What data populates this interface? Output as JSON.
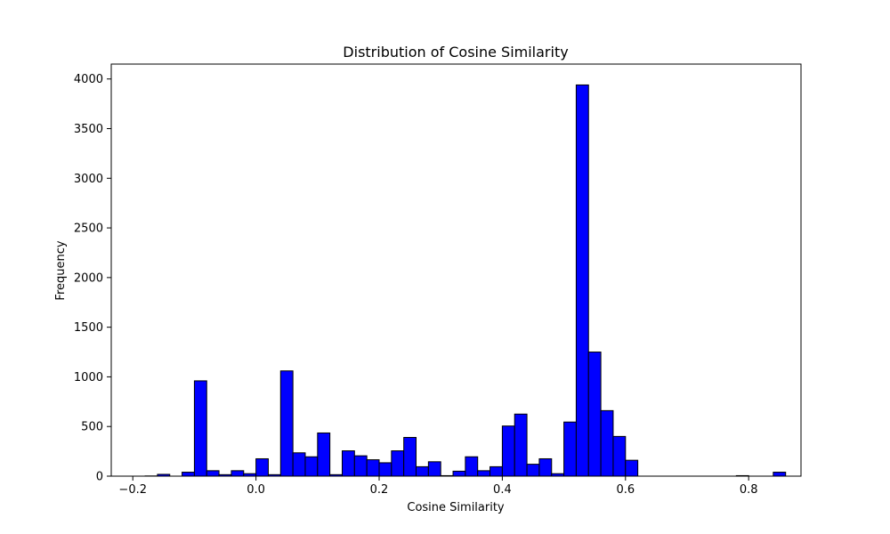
{
  "chart_data": {
    "type": "bar",
    "title": "Distribution of Cosine Similarity",
    "xlabel": "Cosine Similarity",
    "ylabel": "Frequency",
    "bin_start": -0.18,
    "bin_width": 0.02,
    "values": [
      2,
      18,
      0,
      40,
      960,
      55,
      15,
      55,
      25,
      175,
      15,
      1060,
      235,
      195,
      435,
      15,
      255,
      205,
      165,
      135,
      255,
      390,
      95,
      145,
      5,
      50,
      195,
      55,
      95,
      505,
      625,
      120,
      175,
      25,
      545,
      3940,
      1250,
      660,
      400,
      160,
      0,
      0,
      0,
      0,
      0,
      0,
      0,
      0,
      5,
      0,
      0,
      40
    ],
    "xlim": [
      -0.235,
      0.885
    ],
    "ylim": [
      0,
      4150
    ],
    "xticks": [
      -0.2,
      0.0,
      0.2,
      0.4,
      0.6,
      0.8
    ],
    "xtick_labels": [
      "−0.2",
      "0.0",
      "0.2",
      "0.4",
      "0.6",
      "0.8"
    ],
    "yticks": [
      0,
      500,
      1000,
      1500,
      2000,
      2500,
      3000,
      3500,
      4000
    ],
    "ytick_labels": [
      "0",
      "500",
      "1000",
      "1500",
      "2000",
      "2500",
      "3000",
      "3500",
      "4000"
    ],
    "grid": false,
    "bar_color": "#0000ff",
    "edge_color": "#000000"
  }
}
